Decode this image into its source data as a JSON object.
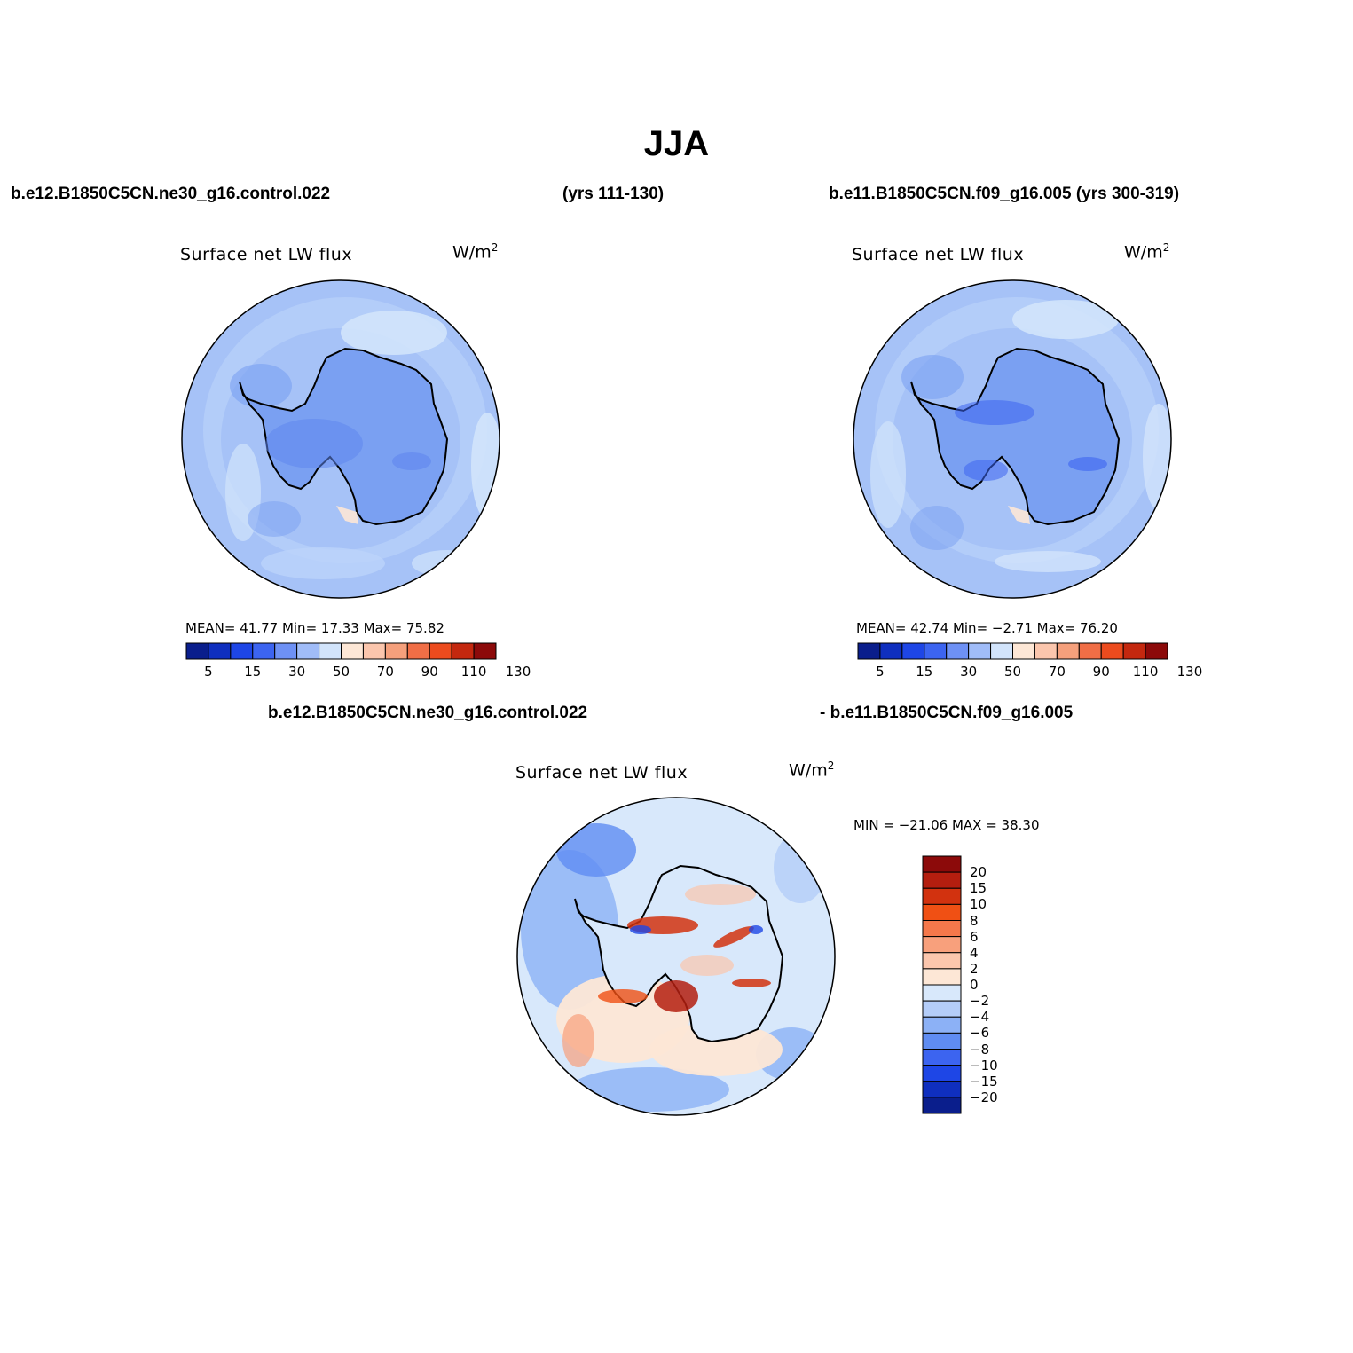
{
  "figure": {
    "title": "JJA",
    "case_a_label": "b.e12.B1850C5CN.ne30_g16.control.022",
    "case_a_years": "(yrs 111-130)",
    "case_b_label": "b.e11.B1850C5CN.f09_g16.005 (yrs 300-319)",
    "diff_label_a": "b.e12.B1850C5CN.ne30_g16.control.022",
    "diff_label_b": "- b.e11.B1850C5CN.f09_g16.005"
  },
  "panels": [
    {
      "variable": "Surface net LW flux",
      "units_base": "W/m",
      "units_exp": "2",
      "stats": "MEAN=   41.77   Min=   17.33   Max=   75.82"
    },
    {
      "variable": "Surface net LW flux",
      "units_base": "W/m",
      "units_exp": "2",
      "stats": "MEAN=   42.74   Min=  −2.71   Max=   76.20"
    },
    {
      "variable": "Surface net LW flux",
      "units_base": "W/m",
      "units_exp": "2",
      "stats": "MIN = −21.06 MAX =   38.30"
    }
  ],
  "colorbar_main": {
    "colors": [
      "#0a1e8c",
      "#0f2fbf",
      "#1e46e6",
      "#3c64f0",
      "#6e91f5",
      "#a0bcf8",
      "#d2e4fb",
      "#fde7d6",
      "#fbc6ad",
      "#f5a07c",
      "#f06e46",
      "#ec4b1e",
      "#c4280f",
      "#8c0a0a"
    ],
    "tick_labels": [
      "5",
      "15",
      "30",
      "50",
      "70",
      "90",
      "110",
      "130"
    ]
  },
  "colorbar_diff": {
    "colors": [
      "#8c0a0a",
      "#b41e0f",
      "#d2320f",
      "#f05014",
      "#f5784b",
      "#f8a07c",
      "#fbc6ad",
      "#fde7d6",
      "#d8e8fb",
      "#b4cdf9",
      "#8cb1f6",
      "#5f8cf2",
      "#3c64f0",
      "#1e46e6",
      "#0f2fbf",
      "#0a1e8c"
    ],
    "tick_labels": [
      "20",
      "15",
      "10",
      "8",
      "6",
      "4",
      "2",
      "0",
      "−2",
      "−4",
      "−6",
      "−8",
      "−10",
      "−15",
      "−20"
    ]
  },
  "map_colors": {
    "ocean_a": "#a6c2f7",
    "ocean_b": "#a6c2f7",
    "land_a": "#7aa0f2",
    "land_b": "#7aa0f2",
    "diff_background": "#d8e8fb"
  }
}
